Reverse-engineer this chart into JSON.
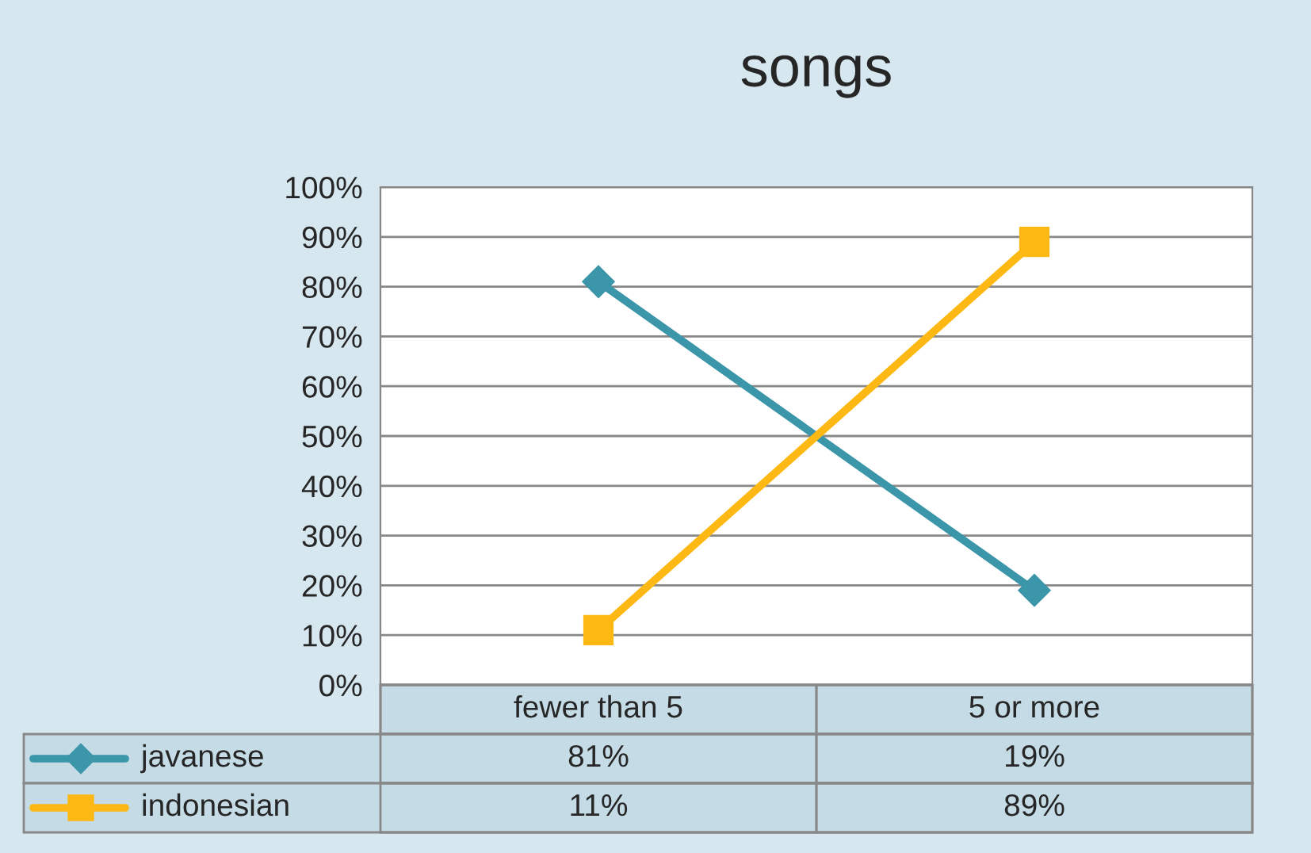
{
  "chart_data": {
    "type": "line",
    "title": "songs",
    "categories": [
      "fewer than 5",
      "5 or more"
    ],
    "series": [
      {
        "name": "javanese",
        "color": "#3a96a8",
        "values": [
          81,
          19
        ],
        "marker": "diamond",
        "value_labels": [
          "81%",
          "19%"
        ]
      },
      {
        "name": "indonesian",
        "color": "#fdb813",
        "values": [
          11,
          89
        ],
        "marker": "square",
        "value_labels": [
          "11%",
          "89%"
        ]
      }
    ],
    "ylim": [
      0,
      100
    ],
    "yticks": [
      {
        "value": 0,
        "label": "0%"
      },
      {
        "value": 10,
        "label": "10%"
      },
      {
        "value": 20,
        "label": "20%"
      },
      {
        "value": 30,
        "label": "30%"
      },
      {
        "value": 40,
        "label": "40%"
      },
      {
        "value": 50,
        "label": "50%"
      },
      {
        "value": 60,
        "label": "60%"
      },
      {
        "value": 70,
        "label": "70%"
      },
      {
        "value": 80,
        "label": "80%"
      },
      {
        "value": 90,
        "label": "90%"
      },
      {
        "value": 100,
        "label": "100%"
      }
    ],
    "grid": "y",
    "legend": "bottom"
  }
}
